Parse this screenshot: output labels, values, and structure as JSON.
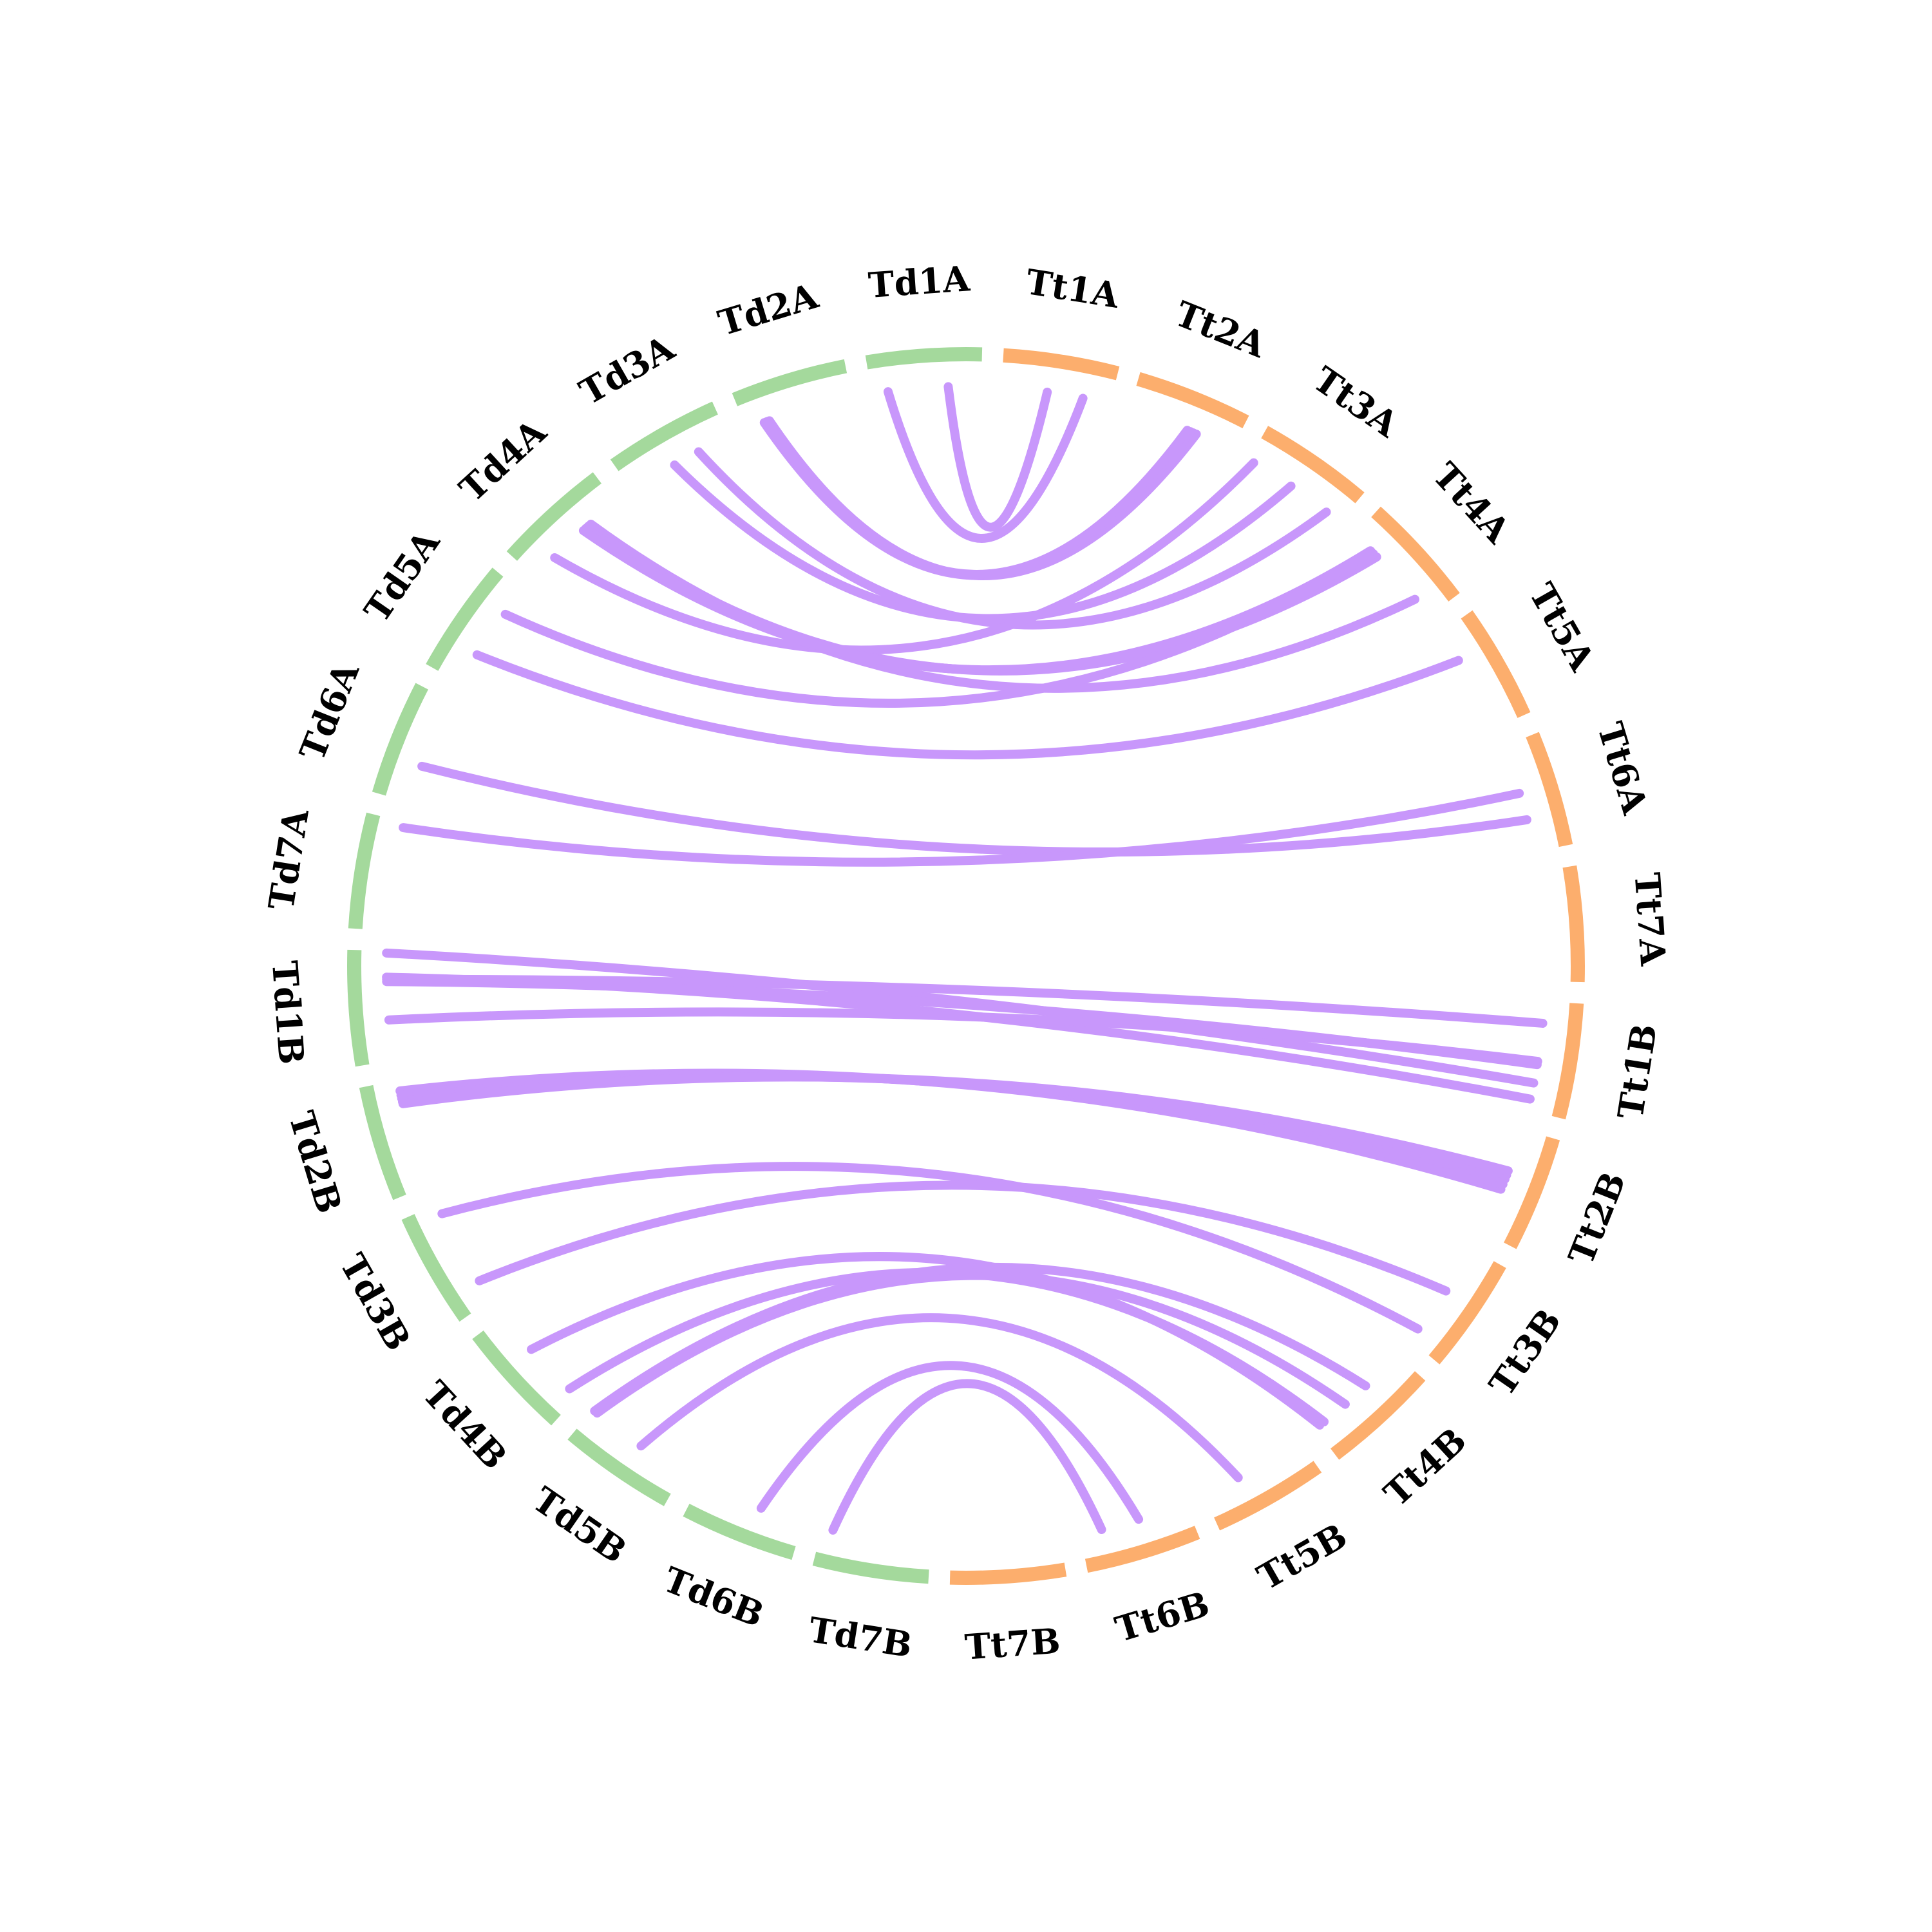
{
  "diagram": {
    "type": "circos",
    "colors": {
      "Td": "#a4d99c",
      "Tt": "#fcae6d",
      "links": "#c897fb",
      "label": "#000000"
    },
    "genomes": [
      {
        "prefix": "Td",
        "color_key": "Td"
      },
      {
        "prefix": "Tt",
        "color_key": "Tt"
      }
    ],
    "chromosomes": [
      {
        "id": "Td1A",
        "label": "Td1A",
        "genome": "Td"
      },
      {
        "id": "Td2A",
        "label": "Td2A",
        "genome": "Td"
      },
      {
        "id": "Td3A",
        "label": "Td3A",
        "genome": "Td"
      },
      {
        "id": "Td4A",
        "label": "Td4A",
        "genome": "Td"
      },
      {
        "id": "Td5A",
        "label": "Td5A",
        "genome": "Td"
      },
      {
        "id": "Td6A",
        "label": "Td6A",
        "genome": "Td"
      },
      {
        "id": "Td7A",
        "label": "Td7A",
        "genome": "Td"
      },
      {
        "id": "Td1B",
        "label": "Td1B",
        "genome": "Td"
      },
      {
        "id": "Td2B",
        "label": "Td2B",
        "genome": "Td"
      },
      {
        "id": "Td3B",
        "label": "Td3B",
        "genome": "Td"
      },
      {
        "id": "Td4B",
        "label": "Td4B",
        "genome": "Td"
      },
      {
        "id": "Td5B",
        "label": "Td5B",
        "genome": "Td"
      },
      {
        "id": "Td6B",
        "label": "Td6B",
        "genome": "Td"
      },
      {
        "id": "Td7B",
        "label": "Td7B",
        "genome": "Td"
      },
      {
        "id": "Tt7B",
        "label": "Tt7B",
        "genome": "Tt"
      },
      {
        "id": "Tt6B",
        "label": "Tt6B",
        "genome": "Tt"
      },
      {
        "id": "Tt5B",
        "label": "Tt5B",
        "genome": "Tt"
      },
      {
        "id": "Tt4B",
        "label": "Tt4B",
        "genome": "Tt"
      },
      {
        "id": "Tt3B",
        "label": "Tt3B",
        "genome": "Tt"
      },
      {
        "id": "Tt2B",
        "label": "Tt2B",
        "genome": "Tt"
      },
      {
        "id": "Tt1B",
        "label": "Tt1B",
        "genome": "Tt"
      },
      {
        "id": "Tt7A",
        "label": "Tt7A",
        "genome": "Tt"
      },
      {
        "id": "Tt6A",
        "label": "Tt6A",
        "genome": "Tt"
      },
      {
        "id": "Tt5A",
        "label": "Tt5A",
        "genome": "Tt"
      },
      {
        "id": "Tt4A",
        "label": "Tt4A",
        "genome": "Tt"
      },
      {
        "id": "Tt3A",
        "label": "Tt3A",
        "genome": "Tt"
      },
      {
        "id": "Tt2A",
        "label": "Tt2A",
        "genome": "Tt"
      },
      {
        "id": "Tt1A",
        "label": "Tt1A",
        "genome": "Tt"
      }
    ],
    "links": [
      {
        "from": "Td1A",
        "from_pos": 0.3,
        "to": "Tt1A",
        "to_pos": 0.58
      },
      {
        "from": "Td1A",
        "from_pos": 0.85,
        "to": "Tt1A",
        "to_pos": 0.25
      },
      {
        "from": "Td2A",
        "from_pos": 0.8,
        "to": "Tt2A",
        "to_pos": 0.38
      },
      {
        "from": "Td2A",
        "from_pos": 0.78,
        "to": "Tt2A",
        "to_pos": 0.35
      },
      {
        "from": "Td2A",
        "from_pos": 0.83,
        "to": "Tt2A",
        "to_pos": 0.41
      },
      {
        "from": "Td2A",
        "from_pos": 0.81,
        "to": "Tt2A",
        "to_pos": 0.44
      },
      {
        "from": "Td3A",
        "from_pos": 0.55,
        "to": "Tt3A",
        "to_pos": 0.55
      },
      {
        "from": "Td3A",
        "from_pos": 0.3,
        "to": "Tt3A",
        "to_pos": 0.15
      },
      {
        "from": "Td4A",
        "from_pos": 0.75,
        "to": "Tt3A",
        "to_pos": 0.95
      },
      {
        "from": "Td4A",
        "from_pos": 0.3,
        "to": "Tt4A",
        "to_pos": 0.2
      },
      {
        "from": "Td4A",
        "from_pos": 0.33,
        "to": "Tt4A",
        "to_pos": 0.72
      },
      {
        "from": "Td4A",
        "from_pos": 0.36,
        "to": "Tt4A",
        "to_pos": 0.76
      },
      {
        "from": "Td4A",
        "from_pos": 0.39,
        "to": "Tt4A",
        "to_pos": 0.8
      },
      {
        "from": "Td5A",
        "from_pos": 0.25,
        "to": "Tt4A",
        "to_pos": 0.79
      },
      {
        "from": "Td5A",
        "from_pos": 0.7,
        "to": "Tt5A",
        "to_pos": 0.7
      },
      {
        "from": "Td6A",
        "from_pos": 0.65,
        "to": "Tt6A",
        "to_pos": 0.3
      },
      {
        "from": "Td7A",
        "from_pos": 0.05,
        "to": "Tt6A",
        "to_pos": 0.55
      },
      {
        "from": "Td1B",
        "from_pos": 0.02,
        "to": "Tt1B",
        "to_pos": 0.25
      },
      {
        "from": "Td1B",
        "from_pos": 0.24,
        "to": "Tt1B",
        "to_pos": 0.1
      },
      {
        "from": "Td1B",
        "from_pos": 0.26,
        "to": "Tt1B",
        "to_pos": 0.8
      },
      {
        "from": "Td1B",
        "from_pos": 0.28,
        "to": "Tt1B",
        "to_pos": 0.42
      },
      {
        "from": "Td1B",
        "from_pos": 0.63,
        "to": "Tt1B",
        "to_pos": 0.45
      },
      {
        "from": "Td2B",
        "from_pos": 0.1,
        "to": "Tt2B",
        "to_pos": 0.42
      },
      {
        "from": "Td2B",
        "from_pos": 0.14,
        "to": "Tt2B",
        "to_pos": 0.47
      },
      {
        "from": "Td2B",
        "from_pos": 0.17,
        "to": "Tt2B",
        "to_pos": 0.52
      },
      {
        "from": "Td2B",
        "from_pos": 0.2,
        "to": "Tt2B",
        "to_pos": 0.56
      },
      {
        "from": "Td2B",
        "from_pos": 0.22,
        "to": "Tt2B",
        "to_pos": 0.6
      },
      {
        "from": "Td3B",
        "from_pos": 0.1,
        "to": "Tt3B",
        "to_pos": 0.12
      },
      {
        "from": "Td3B",
        "from_pos": 0.8,
        "to": "Tt3B",
        "to_pos": 0.55
      },
      {
        "from": "Td4B",
        "from_pos": 0.4,
        "to": "Tt4B",
        "to_pos": 0.05
      },
      {
        "from": "Td4B",
        "from_pos": 0.9,
        "to": "Tt4B",
        "to_pos": 0.1
      },
      {
        "from": "Td5B",
        "from_pos": 0.05,
        "to": "Tt4B",
        "to_pos": 0.35
      },
      {
        "from": "Td5B",
        "from_pos": 0.02,
        "to": "Tt4B",
        "to_pos": 0.6
      },
      {
        "from": "Td5B",
        "from_pos": 0.55,
        "to": "Tt5B",
        "to_pos": 0.35
      },
      {
        "from": "Td6B",
        "from_pos": 0.6,
        "to": "Tt6B",
        "to_pos": 0.55
      },
      {
        "from": "Td7B",
        "from_pos": 0.1,
        "to": "Tt6B",
        "to_pos": 0.2
      }
    ]
  }
}
